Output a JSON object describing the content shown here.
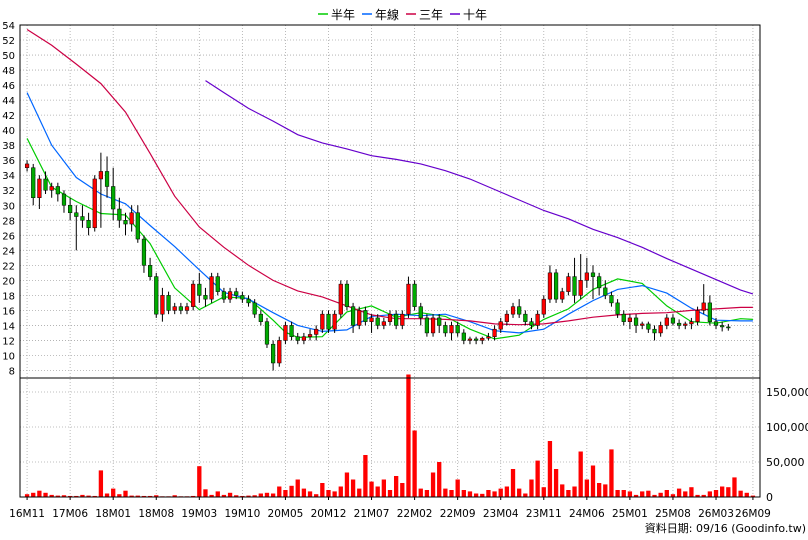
{
  "chart_data": {
    "type": "candlestick-with-volume",
    "legend": [
      {
        "name": "半年",
        "color": "#00cc00"
      },
      {
        "name": "年線",
        "color": "#0066ff"
      },
      {
        "name": "三年",
        "color": "#cc0044"
      },
      {
        "name": "十年",
        "color": "#6600cc"
      }
    ],
    "price_axis": {
      "ylim": [
        7,
        54
      ],
      "ticks": [
        8,
        10,
        12,
        14,
        16,
        18,
        20,
        22,
        24,
        26,
        28,
        30,
        32,
        34,
        36,
        38,
        40,
        42,
        44,
        46,
        48,
        50,
        52,
        54
      ],
      "tick_labels": [
        "8",
        "10",
        "12",
        "14",
        "16",
        "18",
        "20",
        "22",
        "24",
        "26",
        "28",
        "30",
        "32",
        "34",
        "36",
        "38",
        "40",
        "42",
        "44",
        "46",
        "48",
        "50",
        "52",
        "54"
      ]
    },
    "volume_axis": {
      "ylim": [
        0,
        170000
      ],
      "ticks": [
        0,
        50000,
        100000,
        150000
      ],
      "tick_labels": [
        "0",
        "50,000",
        "100,000",
        "150,000"
      ]
    },
    "x_axis": {
      "n_months": 119,
      "ticks": [
        {
          "label": "16M11",
          "index": 0
        },
        {
          "label": "17M06",
          "index": 7
        },
        {
          "label": "18M01",
          "index": 14
        },
        {
          "label": "18M08",
          "index": 21
        },
        {
          "label": "19M03",
          "index": 28
        },
        {
          "label": "19M10",
          "index": 35
        },
        {
          "label": "20M05",
          "index": 42
        },
        {
          "label": "20M12",
          "index": 49
        },
        {
          "label": "21M07",
          "index": 56
        },
        {
          "label": "22M02",
          "index": 63
        },
        {
          "label": "22M09",
          "index": 70
        },
        {
          "label": "23M04",
          "index": 77
        },
        {
          "label": "23M11",
          "index": 84
        },
        {
          "label": "24M06",
          "index": 91
        },
        {
          "label": "25M01",
          "index": 98
        },
        {
          "label": "25M08",
          "index": 105
        },
        {
          "label": "26M03",
          "index": 112
        },
        {
          "label": "26M09",
          "index": 118
        }
      ]
    },
    "candles": [
      {
        "o": 35,
        "h": 36,
        "l": 34.5,
        "c": 35.5
      },
      {
        "o": 35,
        "h": 35.5,
        "l": 30,
        "c": 31
      },
      {
        "o": 31,
        "h": 34,
        "l": 29.5,
        "c": 33.5
      },
      {
        "o": 33.5,
        "h": 34.5,
        "l": 31.5,
        "c": 32
      },
      {
        "o": 32,
        "h": 33,
        "l": 31,
        "c": 32.5
      },
      {
        "o": 32.5,
        "h": 33,
        "l": 30.5,
        "c": 31.5
      },
      {
        "o": 31.5,
        "h": 32,
        "l": 29,
        "c": 30
      },
      {
        "o": 30,
        "h": 31,
        "l": 28,
        "c": 29
      },
      {
        "o": 29,
        "h": 30,
        "l": 24,
        "c": 28.5
      },
      {
        "o": 28.5,
        "h": 30,
        "l": 27,
        "c": 28
      },
      {
        "o": 28,
        "h": 29,
        "l": 26,
        "c": 27
      },
      {
        "o": 27,
        "h": 34,
        "l": 26.5,
        "c": 33.5
      },
      {
        "o": 33.5,
        "h": 37,
        "l": 27,
        "c": 34.5
      },
      {
        "o": 34.5,
        "h": 36.5,
        "l": 31,
        "c": 32.5
      },
      {
        "o": 32.5,
        "h": 35,
        "l": 28,
        "c": 29.5
      },
      {
        "o": 29.5,
        "h": 31,
        "l": 27,
        "c": 28
      },
      {
        "o": 28,
        "h": 29,
        "l": 26,
        "c": 27.5
      },
      {
        "o": 27.5,
        "h": 30,
        "l": 26.5,
        "c": 29
      },
      {
        "o": 29,
        "h": 30,
        "l": 25,
        "c": 25.5
      },
      {
        "o": 25.5,
        "h": 26,
        "l": 21,
        "c": 22
      },
      {
        "o": 22,
        "h": 23,
        "l": 20,
        "c": 20.5
      },
      {
        "o": 20.5,
        "h": 21,
        "l": 15,
        "c": 15.5
      },
      {
        "o": 15.5,
        "h": 19,
        "l": 14.5,
        "c": 18
      },
      {
        "o": 18,
        "h": 18.5,
        "l": 15.5,
        "c": 16
      },
      {
        "o": 16,
        "h": 17,
        "l": 15.5,
        "c": 16.5
      },
      {
        "o": 16.5,
        "h": 17,
        "l": 15.5,
        "c": 16
      },
      {
        "o": 16,
        "h": 17,
        "l": 15.5,
        "c": 16.5
      },
      {
        "o": 16.5,
        "h": 20,
        "l": 16,
        "c": 19.5
      },
      {
        "o": 19.5,
        "h": 21,
        "l": 17,
        "c": 18
      },
      {
        "o": 18,
        "h": 19,
        "l": 16.5,
        "c": 17.5
      },
      {
        "o": 17.5,
        "h": 21,
        "l": 17,
        "c": 20.5
      },
      {
        "o": 20.5,
        "h": 21,
        "l": 18,
        "c": 18.5
      },
      {
        "o": 18.5,
        "h": 19,
        "l": 17,
        "c": 17.5
      },
      {
        "o": 17.5,
        "h": 19,
        "l": 17,
        "c": 18.5
      },
      {
        "o": 18.5,
        "h": 19,
        "l": 17.5,
        "c": 18
      },
      {
        "o": 18,
        "h": 18.5,
        "l": 17,
        "c": 17.5
      },
      {
        "o": 17.5,
        "h": 18,
        "l": 16.5,
        "c": 17
      },
      {
        "o": 17,
        "h": 17.5,
        "l": 15,
        "c": 15.5
      },
      {
        "o": 15.5,
        "h": 16,
        "l": 14,
        "c": 14.5
      },
      {
        "o": 14.5,
        "h": 15,
        "l": 11,
        "c": 11.5
      },
      {
        "o": 11.5,
        "h": 12,
        "l": 8,
        "c": 9
      },
      {
        "o": 9,
        "h": 12.5,
        "l": 8.5,
        "c": 12
      },
      {
        "o": 12,
        "h": 14.5,
        "l": 11.5,
        "c": 14
      },
      {
        "o": 14,
        "h": 14.5,
        "l": 12,
        "c": 12.5
      },
      {
        "o": 12.5,
        "h": 13,
        "l": 11.5,
        "c": 12
      },
      {
        "o": 12,
        "h": 13,
        "l": 11.5,
        "c": 12.5
      },
      {
        "o": 12.5,
        "h": 13.5,
        "l": 12,
        "c": 12.8
      },
      {
        "o": 12.8,
        "h": 14,
        "l": 12,
        "c": 13.5
      },
      {
        "o": 13.5,
        "h": 16,
        "l": 13,
        "c": 15.5
      },
      {
        "o": 15.5,
        "h": 16,
        "l": 13,
        "c": 13.5
      },
      {
        "o": 13.5,
        "h": 16,
        "l": 13,
        "c": 15.5
      },
      {
        "o": 15.5,
        "h": 20,
        "l": 15,
        "c": 19.5
      },
      {
        "o": 19.5,
        "h": 20,
        "l": 16,
        "c": 16.5
      },
      {
        "o": 16.5,
        "h": 17,
        "l": 13,
        "c": 14
      },
      {
        "o": 14,
        "h": 16.5,
        "l": 13.5,
        "c": 16
      },
      {
        "o": 16,
        "h": 16.5,
        "l": 14,
        "c": 14.5
      },
      {
        "o": 14.5,
        "h": 15.5,
        "l": 13,
        "c": 15
      },
      {
        "o": 15,
        "h": 15.5,
        "l": 13.5,
        "c": 14
      },
      {
        "o": 14,
        "h": 15,
        "l": 13.5,
        "c": 14.5
      },
      {
        "o": 14.5,
        "h": 16,
        "l": 14,
        "c": 15.5
      },
      {
        "o": 15.5,
        "h": 16,
        "l": 13.5,
        "c": 14
      },
      {
        "o": 14,
        "h": 16,
        "l": 13.5,
        "c": 15.5
      },
      {
        "o": 15.5,
        "h": 20.5,
        "l": 15,
        "c": 19.5
      },
      {
        "o": 19.5,
        "h": 20,
        "l": 16,
        "c": 16.5
      },
      {
        "o": 16.5,
        "h": 17,
        "l": 14,
        "c": 15
      },
      {
        "o": 15,
        "h": 15.5,
        "l": 12.5,
        "c": 13
      },
      {
        "o": 13,
        "h": 15.5,
        "l": 12.5,
        "c": 15
      },
      {
        "o": 15,
        "h": 15.5,
        "l": 13,
        "c": 14
      },
      {
        "o": 14,
        "h": 14.5,
        "l": 12.5,
        "c": 13
      },
      {
        "o": 13,
        "h": 14.5,
        "l": 12,
        "c": 14
      },
      {
        "o": 14,
        "h": 14.5,
        "l": 12.5,
        "c": 13
      },
      {
        "o": 13,
        "h": 13.5,
        "l": 11.5,
        "c": 12
      },
      {
        "o": 12,
        "h": 12.5,
        "l": 11.5,
        "c": 12.2
      },
      {
        "o": 12.2,
        "h": 12.5,
        "l": 11.5,
        "c": 12
      },
      {
        "o": 12,
        "h": 12.5,
        "l": 11.5,
        "c": 12.3
      },
      {
        "o": 12.3,
        "h": 13,
        "l": 12,
        "c": 12.5
      },
      {
        "o": 12.5,
        "h": 14,
        "l": 12,
        "c": 13.5
      },
      {
        "o": 13.5,
        "h": 15,
        "l": 13,
        "c": 14.5
      },
      {
        "o": 14.5,
        "h": 16,
        "l": 14,
        "c": 15.5
      },
      {
        "o": 15.5,
        "h": 17,
        "l": 15,
        "c": 16.5
      },
      {
        "o": 16.5,
        "h": 17.5,
        "l": 15,
        "c": 15.5
      },
      {
        "o": 15.5,
        "h": 16,
        "l": 14,
        "c": 14.5
      },
      {
        "o": 14.5,
        "h": 15,
        "l": 13.5,
        "c": 14
      },
      {
        "o": 14,
        "h": 16,
        "l": 13.5,
        "c": 15.5
      },
      {
        "o": 15.5,
        "h": 18,
        "l": 15,
        "c": 17.5
      },
      {
        "o": 17.5,
        "h": 22,
        "l": 17,
        "c": 21
      },
      {
        "o": 21,
        "h": 21.5,
        "l": 17,
        "c": 17.5
      },
      {
        "o": 17.5,
        "h": 19,
        "l": 17,
        "c": 18.5
      },
      {
        "o": 18.5,
        "h": 21,
        "l": 18,
        "c": 20.5
      },
      {
        "o": 20.5,
        "h": 23,
        "l": 17,
        "c": 18
      },
      {
        "o": 18,
        "h": 23.5,
        "l": 17.5,
        "c": 20
      },
      {
        "o": 20,
        "h": 23,
        "l": 19,
        "c": 21
      },
      {
        "o": 21,
        "h": 22,
        "l": 17.5,
        "c": 20.5
      },
      {
        "o": 20.5,
        "h": 21,
        "l": 18,
        "c": 19
      },
      {
        "o": 19,
        "h": 20,
        "l": 17.5,
        "c": 18
      },
      {
        "o": 18,
        "h": 18.5,
        "l": 16.5,
        "c": 17
      },
      {
        "o": 17,
        "h": 17.5,
        "l": 15,
        "c": 15.5
      },
      {
        "o": 15.5,
        "h": 16,
        "l": 14,
        "c": 14.5
      },
      {
        "o": 14.5,
        "h": 15.5,
        "l": 13.5,
        "c": 15
      },
      {
        "o": 15,
        "h": 15.5,
        "l": 13,
        "c": 14
      },
      {
        "o": 14,
        "h": 14.5,
        "l": 13.5,
        "c": 14.2
      },
      {
        "o": 14.2,
        "h": 14.5,
        "l": 13,
        "c": 13.5
      },
      {
        "o": 13.5,
        "h": 14,
        "l": 12,
        "c": 13
      },
      {
        "o": 13,
        "h": 14.5,
        "l": 12.5,
        "c": 14
      },
      {
        "o": 14,
        "h": 15.5,
        "l": 13.5,
        "c": 15
      },
      {
        "o": 15,
        "h": 15.5,
        "l": 14,
        "c": 14.3
      },
      {
        "o": 14.3,
        "h": 14.8,
        "l": 13.5,
        "c": 14
      },
      {
        "o": 14,
        "h": 14.5,
        "l": 13.5,
        "c": 14.2
      },
      {
        "o": 14.2,
        "h": 15,
        "l": 13.5,
        "c": 14.5
      },
      {
        "o": 14.5,
        "h": 16.5,
        "l": 14,
        "c": 16
      },
      {
        "o": 16,
        "h": 19.5,
        "l": 15.5,
        "c": 17
      },
      {
        "o": 17,
        "h": 18,
        "l": 14,
        "c": 14.5
      },
      {
        "o": 14.5,
        "h": 15,
        "l": 13.5,
        "c": 14
      },
      {
        "o": 14,
        "h": 14.5,
        "l": 13.2,
        "c": 13.8
      },
      {
        "o": 13.8,
        "h": 14.2,
        "l": 13.3,
        "c": 13.7
      }
    ],
    "volume": [
      4000,
      6000,
      9000,
      6000,
      3000,
      2000,
      2500,
      1500,
      1500,
      3000,
      2000,
      1500,
      38000,
      5000,
      12000,
      4000,
      9000,
      2000,
      2000,
      1500,
      1500,
      2500,
      1000,
      1000,
      2500,
      1000,
      1000,
      1500,
      44000,
      11000,
      3000,
      8000,
      3000,
      6000,
      2500,
      1500,
      2000,
      2500,
      5000,
      6000,
      5000,
      15000,
      10000,
      16000,
      25000,
      12000,
      8000,
      4000,
      20000,
      10000,
      8000,
      15000,
      35000,
      25000,
      12000,
      60000,
      22000,
      15000,
      25000,
      10000,
      30000,
      20000,
      175000,
      95000,
      12000,
      10000,
      35000,
      50000,
      12000,
      10000,
      25000,
      10000,
      8000,
      5000,
      4500,
      10000,
      8000,
      12000,
      15000,
      40000,
      12000,
      5000,
      25000,
      52000,
      14000,
      80000,
      40000,
      18000,
      10000,
      15000,
      65000,
      25000,
      45000,
      20000,
      18000,
      68000,
      10000,
      10000,
      8000,
      3000,
      8000,
      9000,
      3000,
      6000,
      10000,
      4000,
      12000,
      8000,
      14000,
      3000,
      3000,
      8000,
      10000,
      15000,
      14000,
      28000,
      9000,
      6000,
      2000
    ],
    "ma_half": [
      [
        0,
        38.9
      ],
      [
        4,
        32.4
      ],
      [
        8,
        30.5
      ],
      [
        12,
        28.9
      ],
      [
        16,
        28.7
      ],
      [
        20,
        24.9
      ],
      [
        24,
        19
      ],
      [
        28,
        16.1
      ],
      [
        32,
        17.8
      ],
      [
        36,
        17.6
      ],
      [
        40,
        14.7
      ],
      [
        42,
        13.1
      ],
      [
        44,
        12.4
      ],
      [
        48,
        12.5
      ],
      [
        52,
        15.8
      ],
      [
        56,
        16.6
      ],
      [
        60,
        15.1
      ],
      [
        64,
        15.7
      ],
      [
        68,
        15.2
      ],
      [
        72,
        13.5
      ],
      [
        76,
        12.2
      ],
      [
        80,
        12.7
      ],
      [
        84,
        14.8
      ],
      [
        88,
        16.2
      ],
      [
        92,
        18.8
      ],
      [
        96,
        20.2
      ],
      [
        100,
        19.6
      ],
      [
        104,
        16.6
      ],
      [
        108,
        14.5
      ],
      [
        112,
        14.3
      ],
      [
        116,
        14.9
      ],
      [
        118,
        14.8
      ]
    ],
    "ma_year": [
      [
        0,
        45
      ],
      [
        4,
        38
      ],
      [
        8,
        33.7
      ],
      [
        12,
        31.5
      ],
      [
        16,
        30.2
      ],
      [
        20,
        27.3
      ],
      [
        24,
        24.5
      ],
      [
        28,
        21.4
      ],
      [
        32,
        18.4
      ],
      [
        36,
        17.5
      ],
      [
        40,
        15.7
      ],
      [
        44,
        14
      ],
      [
        48,
        13.2
      ],
      [
        52,
        13.4
      ],
      [
        56,
        15.2
      ],
      [
        60,
        15.5
      ],
      [
        64,
        15.3
      ],
      [
        68,
        15.5
      ],
      [
        72,
        14.5
      ],
      [
        76,
        13.3
      ],
      [
        80,
        13
      ],
      [
        84,
        13.5
      ],
      [
        88,
        15.5
      ],
      [
        92,
        17.3
      ],
      [
        96,
        18.8
      ],
      [
        100,
        19.3
      ],
      [
        104,
        18.3
      ],
      [
        108,
        16.3
      ],
      [
        112,
        14.7
      ],
      [
        116,
        14.6
      ],
      [
        118,
        14.6
      ]
    ],
    "ma_3year": [
      [
        0,
        53.4
      ],
      [
        4,
        51.3
      ],
      [
        8,
        48.8
      ],
      [
        12,
        46.2
      ],
      [
        16,
        42.4
      ],
      [
        20,
        36.9
      ],
      [
        24,
        31.2
      ],
      [
        28,
        27.1
      ],
      [
        32,
        24.4
      ],
      [
        36,
        22
      ],
      [
        40,
        20
      ],
      [
        44,
        18.6
      ],
      [
        48,
        17.8
      ],
      [
        52,
        16.6
      ],
      [
        56,
        15.4
      ],
      [
        60,
        14.9
      ],
      [
        64,
        14.9
      ],
      [
        68,
        14.8
      ],
      [
        72,
        14.6
      ],
      [
        76,
        14.2
      ],
      [
        80,
        14.1
      ],
      [
        84,
        14.2
      ],
      [
        88,
        14.6
      ],
      [
        92,
        15.1
      ],
      [
        96,
        15.4
      ],
      [
        100,
        15.6
      ],
      [
        104,
        15.7
      ],
      [
        108,
        16
      ],
      [
        112,
        16.2
      ],
      [
        116,
        16.4
      ],
      [
        118,
        16.4
      ]
    ],
    "ma_10year": [
      [
        29,
        46.6
      ],
      [
        32,
        45
      ],
      [
        36,
        42.9
      ],
      [
        40,
        41.2
      ],
      [
        44,
        39.4
      ],
      [
        48,
        38.3
      ],
      [
        52,
        37.5
      ],
      [
        56,
        36.6
      ],
      [
        60,
        36.1
      ],
      [
        64,
        35.5
      ],
      [
        68,
        34.6
      ],
      [
        72,
        33.5
      ],
      [
        76,
        32.1
      ],
      [
        80,
        30.7
      ],
      [
        84,
        29.3
      ],
      [
        88,
        28.2
      ],
      [
        92,
        26.8
      ],
      [
        96,
        25.7
      ],
      [
        100,
        24.4
      ],
      [
        104,
        22.9
      ],
      [
        108,
        21.5
      ],
      [
        112,
        20.1
      ],
      [
        116,
        18.7
      ],
      [
        118,
        18.2
      ]
    ],
    "footer": "資料日期: 09/16  (Goodinfo.tw)"
  }
}
